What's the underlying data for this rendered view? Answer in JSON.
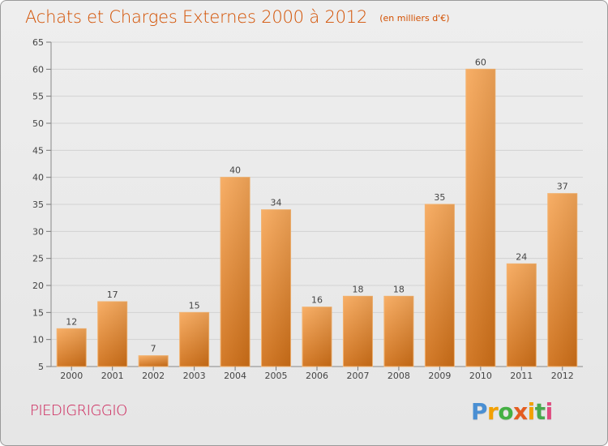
{
  "header": {
    "title": "Achats et Charges Externes 2000 à 2012",
    "subtitle": "(en milliers d'€)"
  },
  "footer": {
    "commune": "PIEDIGRIGGIO",
    "brand": "Proxiti"
  },
  "colors": {
    "title": "#d35000",
    "bar_top": "#f7a85a",
    "bar_bottom": "#cf6f17",
    "commune": "#cc1f56"
  },
  "chart_data": {
    "type": "bar",
    "categories": [
      "2000",
      "2001",
      "2002",
      "2003",
      "2004",
      "2005",
      "2006",
      "2007",
      "2008",
      "2009",
      "2010",
      "2011",
      "2012"
    ],
    "values": [
      12,
      17,
      7,
      15,
      40,
      34,
      16,
      18,
      18,
      35,
      60,
      24,
      37
    ],
    "title": "Achats et Charges Externes 2000 à 2012",
    "subtitle": "(en milliers d'€)",
    "xlabel": "",
    "ylabel": "",
    "ylim": [
      5,
      65
    ],
    "yticks": [
      5,
      10,
      15,
      20,
      25,
      30,
      35,
      40,
      45,
      50,
      55,
      60,
      65
    ],
    "grid": true,
    "data_labels": true
  }
}
